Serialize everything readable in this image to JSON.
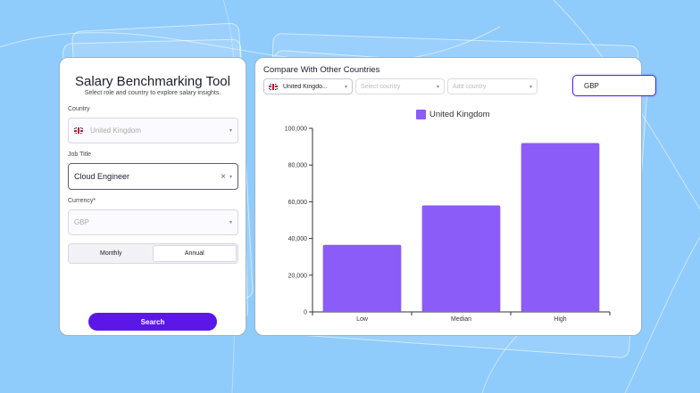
{
  "form": {
    "title": "Salary Benchmarking Tool",
    "subtitle": "Select role and country to explore salary insights.",
    "country_label": "Country",
    "country_value": "United Kingdom",
    "job_label": "Job Title",
    "job_value": "Cloud Engineer",
    "currency_label": "Currency*",
    "currency_value": "GBP",
    "period_options": [
      "Monthly",
      "Annual"
    ],
    "period_selected": "Annual",
    "search_label": "Search"
  },
  "compare": {
    "title": "Compare With Other Countries",
    "dropdowns": [
      {
        "value": "United Kingdo...",
        "enabled": true
      },
      {
        "value": "Select country",
        "enabled": false
      },
      {
        "value": "Add country",
        "enabled": false
      }
    ],
    "currency": "GBP"
  },
  "colors": {
    "accent": "#5b16e8",
    "bar": "#8b5cf8",
    "background": "#8fcbfb"
  },
  "chart_data": {
    "type": "bar",
    "categories": [
      "Low",
      "Median",
      "High"
    ],
    "series": [
      {
        "name": "United Kingdom",
        "values": [
          36500,
          58000,
          92000
        ]
      }
    ],
    "ylim": [
      0,
      100000
    ],
    "yticks": [
      0,
      20000,
      40000,
      60000,
      80000,
      100000
    ],
    "ytick_labels": [
      "0",
      "20,000",
      "40,000",
      "60,000",
      "80,000",
      "100,000"
    ],
    "legend": "top-center",
    "grid": false
  }
}
